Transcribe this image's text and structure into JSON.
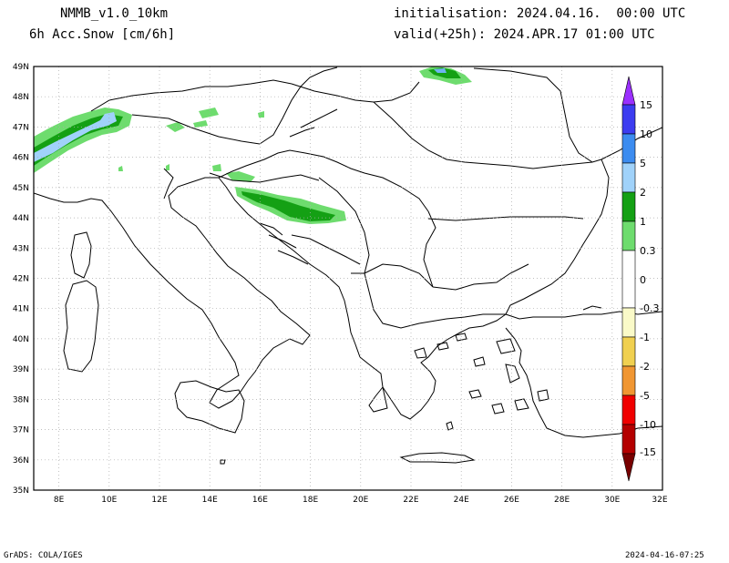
{
  "header": {
    "model": "NMMB_v1.0_10km",
    "field": "6h Acc.Snow [cm/6h]",
    "init": "initialisation: 2024.04.16.  00:00 UTC",
    "valid": "valid(+25h): 2024.APR.17 01:00 UTC"
  },
  "footer": {
    "credit": "GrADS: COLA/IGES",
    "timestamp": "2024-04-16-07:25"
  },
  "map": {
    "lat_labels": [
      "49N",
      "48N",
      "47N",
      "46N",
      "45N",
      "44N",
      "43N",
      "42N",
      "41N",
      "40N",
      "39N",
      "38N",
      "37N",
      "36N",
      "35N"
    ],
    "lon_labels": [
      "8E",
      "10E",
      "12E",
      "14E",
      "16E",
      "18E",
      "20E",
      "22E",
      "24E",
      "26E",
      "28E",
      "30E",
      "32E"
    ],
    "extent": {
      "lon_min": 7,
      "lon_max": 32,
      "lat_min": 35,
      "lat_max": 49
    }
  },
  "legend": {
    "labels": [
      "15",
      "10",
      "5",
      "2",
      "1",
      "0.3",
      "0",
      "-0.3",
      "-1",
      "-2",
      "-5",
      "-10",
      "-15"
    ],
    "colors": [
      "#9b30ff",
      "#3c3cf0",
      "#3c8cf0",
      "#6eb4f0",
      "#a0d2fa",
      "#14a014",
      "#6edc6e",
      "#ffffff",
      "#fafac8",
      "#f0d050",
      "#f09632",
      "#f04632",
      "#d20000",
      "#8c0000"
    ]
  },
  "snow_colors": {
    "light": "#6edc6e",
    "medium": "#14a014",
    "light_blue": "#a0d2fa",
    "blue": "#6eb4f0"
  }
}
